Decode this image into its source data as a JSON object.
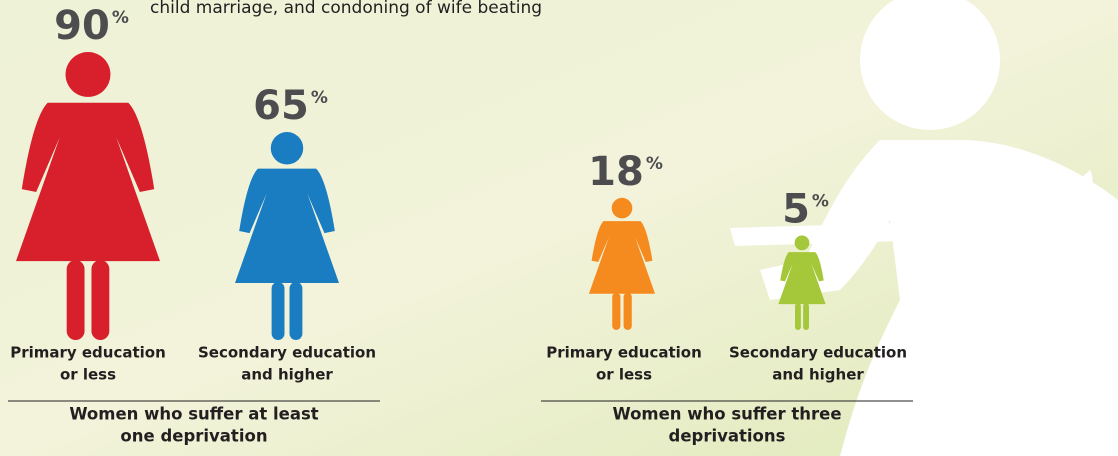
{
  "subtitle": "child marriage, and condoning of wife beating",
  "chart_data": [
    {
      "type": "pictogram",
      "title": [
        "Women who suffer at least",
        "one deprivation"
      ],
      "unit": "%",
      "categories": [
        [
          "Primary education",
          "or less"
        ],
        [
          "Secondary education",
          "and higher"
        ]
      ],
      "values": [
        90,
        65
      ],
      "colors": [
        "#d7202c",
        "#1b7dc1"
      ]
    },
    {
      "type": "pictogram",
      "title": [
        "Women who suffer three",
        "deprivations"
      ],
      "unit": "%",
      "categories": [
        [
          "Primary education",
          "or less"
        ],
        [
          "Secondary education",
          "and higher"
        ]
      ],
      "values": [
        18,
        5
      ],
      "colors": [
        "#f58a1f",
        "#a5c73a"
      ]
    }
  ]
}
